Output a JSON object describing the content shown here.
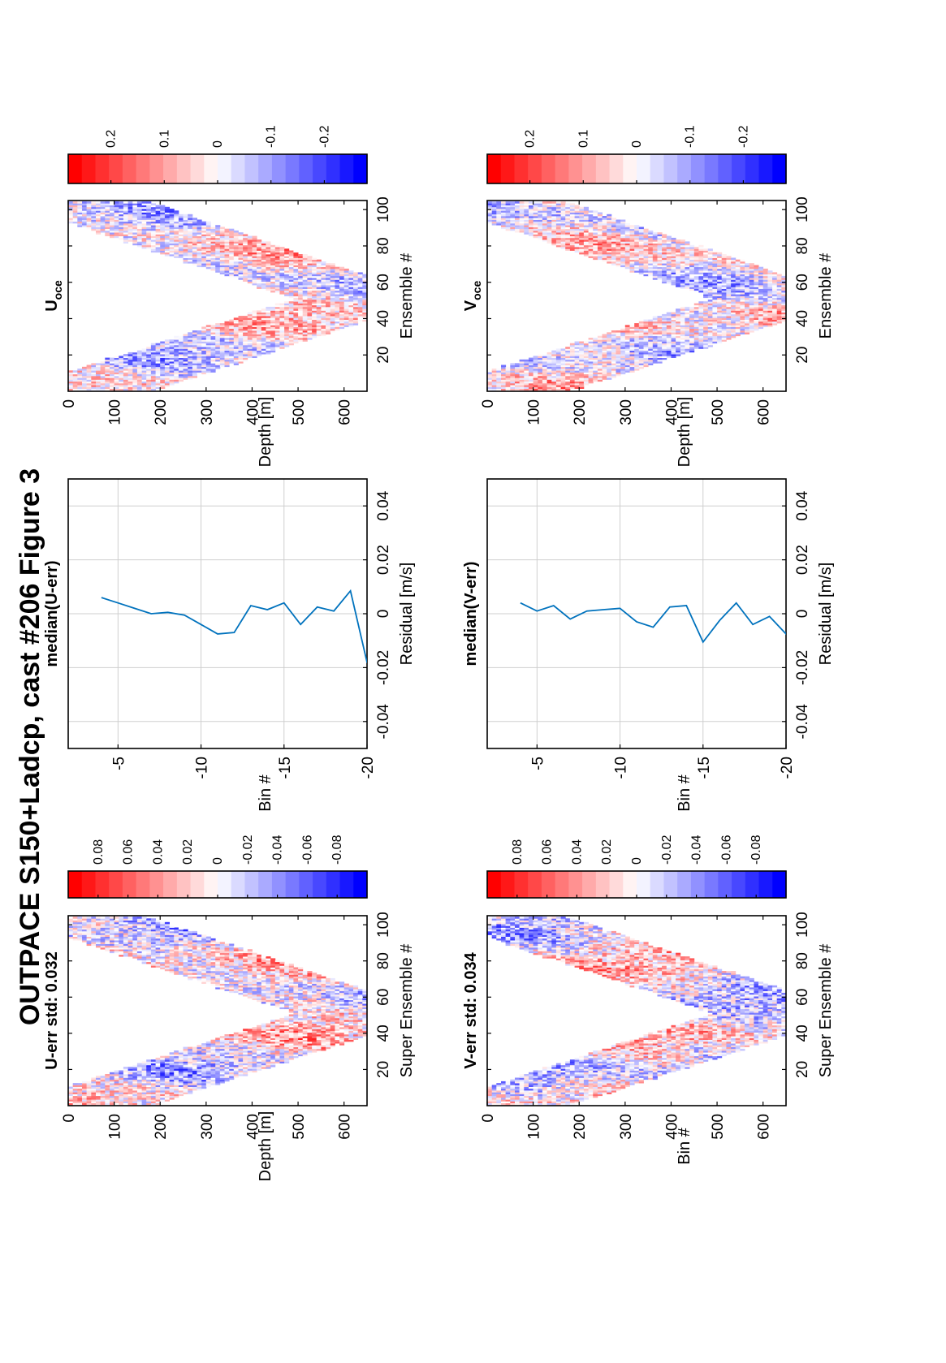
{
  "title": "OUTPACE S150+Ladcp, cast #206  Figure 3",
  "chart_data": [
    {
      "type": "heatmap",
      "id": "u_err",
      "title": "U-err std: 0.032",
      "xlabel": "Super Ensemble #",
      "ylabel": "Depth [m]",
      "xlim": [
        0,
        105
      ],
      "ylim": [
        0,
        650
      ],
      "xticks": [
        20,
        40,
        60,
        80,
        100
      ],
      "yticks": [
        0,
        100,
        200,
        300,
        400,
        500,
        600
      ],
      "vertex": {
        "x": 51,
        "depth": 640
      },
      "start_depth": 20,
      "band_halfwidth": 12,
      "clim": [
        -0.1,
        0.1
      ],
      "seed": 11,
      "amplitude": 0.07,
      "colorbar_ticks": [
        "0.08",
        "0.06",
        "0.04",
        "0.02",
        "0",
        "-0.02",
        "-0.04",
        "-0.06",
        "-0.08"
      ],
      "colorbar_tick_values": [
        0.08,
        0.06,
        0.04,
        0.02,
        0,
        -0.02,
        -0.04,
        -0.06,
        -0.08
      ]
    },
    {
      "type": "line",
      "id": "u_median",
      "title": "median(U-err)",
      "xlabel": "Residual [m/s]",
      "ylabel": "Bin #",
      "xlim": [
        -0.05,
        0.05
      ],
      "ylim": [
        -20,
        -2
      ],
      "xticks": [
        -0.04,
        -0.02,
        0,
        0.02,
        0.04
      ],
      "xticklabels": [
        "-0.04",
        "-0.02",
        "0",
        "0.02",
        "0.04"
      ],
      "yticks": [
        -5,
        -10,
        -15,
        -20
      ],
      "yticklabels": [
        "-5",
        "-10",
        "-15",
        "-20"
      ],
      "grid": true,
      "series": [
        {
          "color": "#0072bd",
          "x": [
            0.006,
            0.004,
            0.002,
            0.0,
            0.0005,
            -0.0005,
            -0.004,
            -0.0075,
            -0.007,
            0.003,
            0.0015,
            0.004,
            -0.004,
            0.0025,
            0.001,
            0.0085,
            -0.018,
            -0.021
          ],
          "y": [
            -4,
            -5,
            -6,
            -7,
            -8,
            -9,
            -10,
            -11,
            -12,
            -13,
            -14,
            -15,
            -16,
            -17,
            -18,
            -19,
            -20,
            -20.5
          ]
        }
      ]
    },
    {
      "type": "heatmap",
      "id": "u_oce",
      "title": "U",
      "title_subscript": "oce",
      "xlabel": "Ensemble #",
      "ylabel": "Depth [m]",
      "xlim": [
        0,
        105
      ],
      "ylim": [
        0,
        650
      ],
      "xticks": [
        20,
        40,
        60,
        80,
        100
      ],
      "yticks": [
        0,
        100,
        200,
        300,
        400,
        500,
        600
      ],
      "vertex": {
        "x": 51,
        "depth": 640
      },
      "start_depth": 20,
      "band_halfwidth": 12,
      "clim": [
        -0.28,
        0.28
      ],
      "seed": 23,
      "amplitude": 0.18,
      "colorbar_ticks": [
        "0.2",
        "0.1",
        "0",
        "-0.1",
        "-0.2"
      ],
      "colorbar_tick_values": [
        0.2,
        0.1,
        0,
        -0.1,
        -0.2
      ]
    },
    {
      "type": "heatmap",
      "id": "v_err",
      "title": "V-err std: 0.034",
      "xlabel": "Super Ensemble #",
      "ylabel": "Bin #",
      "xlim": [
        0,
        105
      ],
      "ylim": [
        0,
        650
      ],
      "xticks": [
        20,
        40,
        60,
        80,
        100
      ],
      "yticks": [
        0,
        100,
        200,
        300,
        400,
        500,
        600
      ],
      "vertex": {
        "x": 51,
        "depth": 640
      },
      "start_depth": 20,
      "band_halfwidth": 12,
      "clim": [
        -0.1,
        0.1
      ],
      "seed": 37,
      "amplitude": 0.07,
      "colorbar_ticks": [
        "0.08",
        "0.06",
        "0.04",
        "0.02",
        "0",
        "-0.02",
        "-0.04",
        "-0.06",
        "-0.08"
      ],
      "colorbar_tick_values": [
        0.08,
        0.06,
        0.04,
        0.02,
        0,
        -0.02,
        -0.04,
        -0.06,
        -0.08
      ]
    },
    {
      "type": "line",
      "id": "v_median",
      "title": "median(V-err)",
      "xlabel": "Residual [m/s]",
      "ylabel": "Bin #",
      "xlim": [
        -0.05,
        0.05
      ],
      "ylim": [
        -20,
        -2
      ],
      "xticks": [
        -0.04,
        -0.02,
        0,
        0.02,
        0.04
      ],
      "xticklabels": [
        "-0.04",
        "-0.02",
        "0",
        "0.02",
        "0.04"
      ],
      "yticks": [
        -5,
        -10,
        -15,
        -20
      ],
      "yticklabels": [
        "-5",
        "-10",
        "-15",
        "-20"
      ],
      "grid": true,
      "series": [
        {
          "color": "#0072bd",
          "x": [
            0.004,
            0.001,
            0.003,
            -0.002,
            0.001,
            0.0015,
            0.002,
            -0.003,
            -0.005,
            0.0025,
            0.003,
            -0.0105,
            -0.0025,
            0.004,
            -0.004,
            -0.001,
            -0.0075,
            0.014,
            0.017
          ],
          "y": [
            -4,
            -5,
            -6,
            -7,
            -8,
            -9,
            -10,
            -11,
            -12,
            -13,
            -14,
            -15,
            -16,
            -17,
            -18,
            -19,
            -20,
            -21,
            -22
          ]
        }
      ]
    },
    {
      "type": "heatmap",
      "id": "v_oce",
      "title": "V",
      "title_subscript": "oce",
      "xlabel": "Ensemble #",
      "ylabel": "Depth [m]",
      "xlim": [
        0,
        105
      ],
      "ylim": [
        0,
        650
      ],
      "xticks": [
        20,
        40,
        60,
        80,
        100
      ],
      "yticks": [
        0,
        100,
        200,
        300,
        400,
        500,
        600
      ],
      "vertex": {
        "x": 51,
        "depth": 640
      },
      "start_depth": 20,
      "band_halfwidth": 12,
      "clim": [
        -0.28,
        0.28
      ],
      "seed": 51,
      "amplitude": 0.18,
      "colorbar_ticks": [
        "0.2",
        "0.1",
        "0",
        "-0.1",
        "-0.2"
      ],
      "colorbar_tick_values": [
        0.2,
        0.1,
        0,
        -0.1,
        -0.2
      ]
    }
  ]
}
